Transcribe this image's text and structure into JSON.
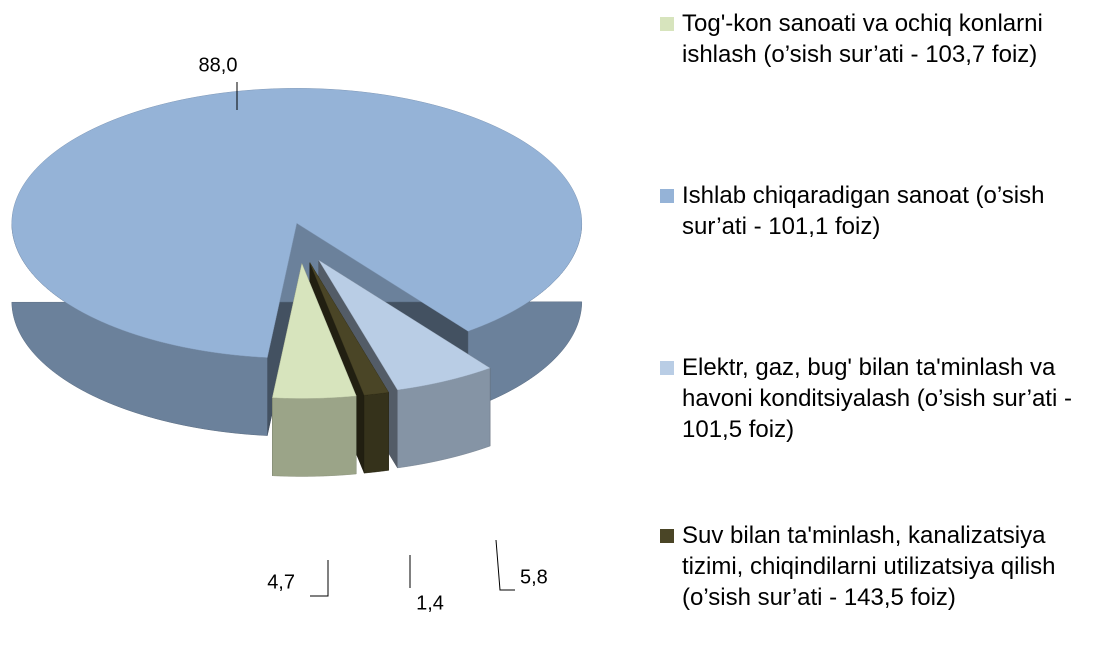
{
  "chart_data": {
    "type": "pie",
    "categories": [
      "Tog'-kon sanoati va ochiq konlarni ishlash  (o’sish sur’ati - 103,7 foiz)",
      "Ishlab chiqaradigan sanoat (o’sish sur’ati - 101,1 foiz)",
      "Elektr, gaz, bug'  bilan ta'minlash va havoni konditsiyalash  (o’sish sur’ati - 101,5 foiz)",
      "Suv bilan ta'minlash, kanalizatsiya tizimi, chiqindilarni utilizatsiya qilish (o’sish sur’ati - 143,5 foiz)"
    ],
    "values": [
      4.7,
      88.0,
      5.8,
      1.4
    ],
    "value_labels": [
      "4,7",
      "88,0",
      "5,8",
      "1,4"
    ],
    "colors": [
      "#d7e4bd",
      "#95b3d7",
      "#b9cde5",
      "#4a4526"
    ],
    "legend": "right"
  }
}
